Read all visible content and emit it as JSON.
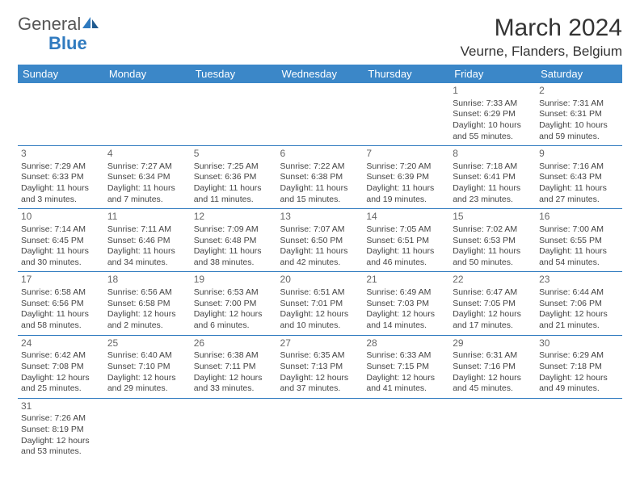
{
  "logo": {
    "part1": "Genera",
    "part2": "l",
    "part3": "Blue"
  },
  "title": "March 2024",
  "location": "Veurne, Flanders, Belgium",
  "colors": {
    "header_bg": "#3b87c8",
    "header_text": "#ffffff",
    "border": "#2f7abf",
    "text": "#444444",
    "daynum": "#666666",
    "logo_gray": "#555555",
    "logo_blue": "#2f7abf",
    "background": "#ffffff"
  },
  "weekdays": [
    "Sunday",
    "Monday",
    "Tuesday",
    "Wednesday",
    "Thursday",
    "Friday",
    "Saturday"
  ],
  "weeks": [
    [
      null,
      null,
      null,
      null,
      null,
      {
        "n": "1",
        "sr": "Sunrise: 7:33 AM",
        "ss": "Sunset: 6:29 PM",
        "dl": "Daylight: 10 hours and 55 minutes."
      },
      {
        "n": "2",
        "sr": "Sunrise: 7:31 AM",
        "ss": "Sunset: 6:31 PM",
        "dl": "Daylight: 10 hours and 59 minutes."
      }
    ],
    [
      {
        "n": "3",
        "sr": "Sunrise: 7:29 AM",
        "ss": "Sunset: 6:33 PM",
        "dl": "Daylight: 11 hours and 3 minutes."
      },
      {
        "n": "4",
        "sr": "Sunrise: 7:27 AM",
        "ss": "Sunset: 6:34 PM",
        "dl": "Daylight: 11 hours and 7 minutes."
      },
      {
        "n": "5",
        "sr": "Sunrise: 7:25 AM",
        "ss": "Sunset: 6:36 PM",
        "dl": "Daylight: 11 hours and 11 minutes."
      },
      {
        "n": "6",
        "sr": "Sunrise: 7:22 AM",
        "ss": "Sunset: 6:38 PM",
        "dl": "Daylight: 11 hours and 15 minutes."
      },
      {
        "n": "7",
        "sr": "Sunrise: 7:20 AM",
        "ss": "Sunset: 6:39 PM",
        "dl": "Daylight: 11 hours and 19 minutes."
      },
      {
        "n": "8",
        "sr": "Sunrise: 7:18 AM",
        "ss": "Sunset: 6:41 PM",
        "dl": "Daylight: 11 hours and 23 minutes."
      },
      {
        "n": "9",
        "sr": "Sunrise: 7:16 AM",
        "ss": "Sunset: 6:43 PM",
        "dl": "Daylight: 11 hours and 27 minutes."
      }
    ],
    [
      {
        "n": "10",
        "sr": "Sunrise: 7:14 AM",
        "ss": "Sunset: 6:45 PM",
        "dl": "Daylight: 11 hours and 30 minutes."
      },
      {
        "n": "11",
        "sr": "Sunrise: 7:11 AM",
        "ss": "Sunset: 6:46 PM",
        "dl": "Daylight: 11 hours and 34 minutes."
      },
      {
        "n": "12",
        "sr": "Sunrise: 7:09 AM",
        "ss": "Sunset: 6:48 PM",
        "dl": "Daylight: 11 hours and 38 minutes."
      },
      {
        "n": "13",
        "sr": "Sunrise: 7:07 AM",
        "ss": "Sunset: 6:50 PM",
        "dl": "Daylight: 11 hours and 42 minutes."
      },
      {
        "n": "14",
        "sr": "Sunrise: 7:05 AM",
        "ss": "Sunset: 6:51 PM",
        "dl": "Daylight: 11 hours and 46 minutes."
      },
      {
        "n": "15",
        "sr": "Sunrise: 7:02 AM",
        "ss": "Sunset: 6:53 PM",
        "dl": "Daylight: 11 hours and 50 minutes."
      },
      {
        "n": "16",
        "sr": "Sunrise: 7:00 AM",
        "ss": "Sunset: 6:55 PM",
        "dl": "Daylight: 11 hours and 54 minutes."
      }
    ],
    [
      {
        "n": "17",
        "sr": "Sunrise: 6:58 AM",
        "ss": "Sunset: 6:56 PM",
        "dl": "Daylight: 11 hours and 58 minutes."
      },
      {
        "n": "18",
        "sr": "Sunrise: 6:56 AM",
        "ss": "Sunset: 6:58 PM",
        "dl": "Daylight: 12 hours and 2 minutes."
      },
      {
        "n": "19",
        "sr": "Sunrise: 6:53 AM",
        "ss": "Sunset: 7:00 PM",
        "dl": "Daylight: 12 hours and 6 minutes."
      },
      {
        "n": "20",
        "sr": "Sunrise: 6:51 AM",
        "ss": "Sunset: 7:01 PM",
        "dl": "Daylight: 12 hours and 10 minutes."
      },
      {
        "n": "21",
        "sr": "Sunrise: 6:49 AM",
        "ss": "Sunset: 7:03 PM",
        "dl": "Daylight: 12 hours and 14 minutes."
      },
      {
        "n": "22",
        "sr": "Sunrise: 6:47 AM",
        "ss": "Sunset: 7:05 PM",
        "dl": "Daylight: 12 hours and 17 minutes."
      },
      {
        "n": "23",
        "sr": "Sunrise: 6:44 AM",
        "ss": "Sunset: 7:06 PM",
        "dl": "Daylight: 12 hours and 21 minutes."
      }
    ],
    [
      {
        "n": "24",
        "sr": "Sunrise: 6:42 AM",
        "ss": "Sunset: 7:08 PM",
        "dl": "Daylight: 12 hours and 25 minutes."
      },
      {
        "n": "25",
        "sr": "Sunrise: 6:40 AM",
        "ss": "Sunset: 7:10 PM",
        "dl": "Daylight: 12 hours and 29 minutes."
      },
      {
        "n": "26",
        "sr": "Sunrise: 6:38 AM",
        "ss": "Sunset: 7:11 PM",
        "dl": "Daylight: 12 hours and 33 minutes."
      },
      {
        "n": "27",
        "sr": "Sunrise: 6:35 AM",
        "ss": "Sunset: 7:13 PM",
        "dl": "Daylight: 12 hours and 37 minutes."
      },
      {
        "n": "28",
        "sr": "Sunrise: 6:33 AM",
        "ss": "Sunset: 7:15 PM",
        "dl": "Daylight: 12 hours and 41 minutes."
      },
      {
        "n": "29",
        "sr": "Sunrise: 6:31 AM",
        "ss": "Sunset: 7:16 PM",
        "dl": "Daylight: 12 hours and 45 minutes."
      },
      {
        "n": "30",
        "sr": "Sunrise: 6:29 AM",
        "ss": "Sunset: 7:18 PM",
        "dl": "Daylight: 12 hours and 49 minutes."
      }
    ],
    [
      {
        "n": "31",
        "sr": "Sunrise: 7:26 AM",
        "ss": "Sunset: 8:19 PM",
        "dl": "Daylight: 12 hours and 53 minutes."
      },
      null,
      null,
      null,
      null,
      null,
      null
    ]
  ]
}
